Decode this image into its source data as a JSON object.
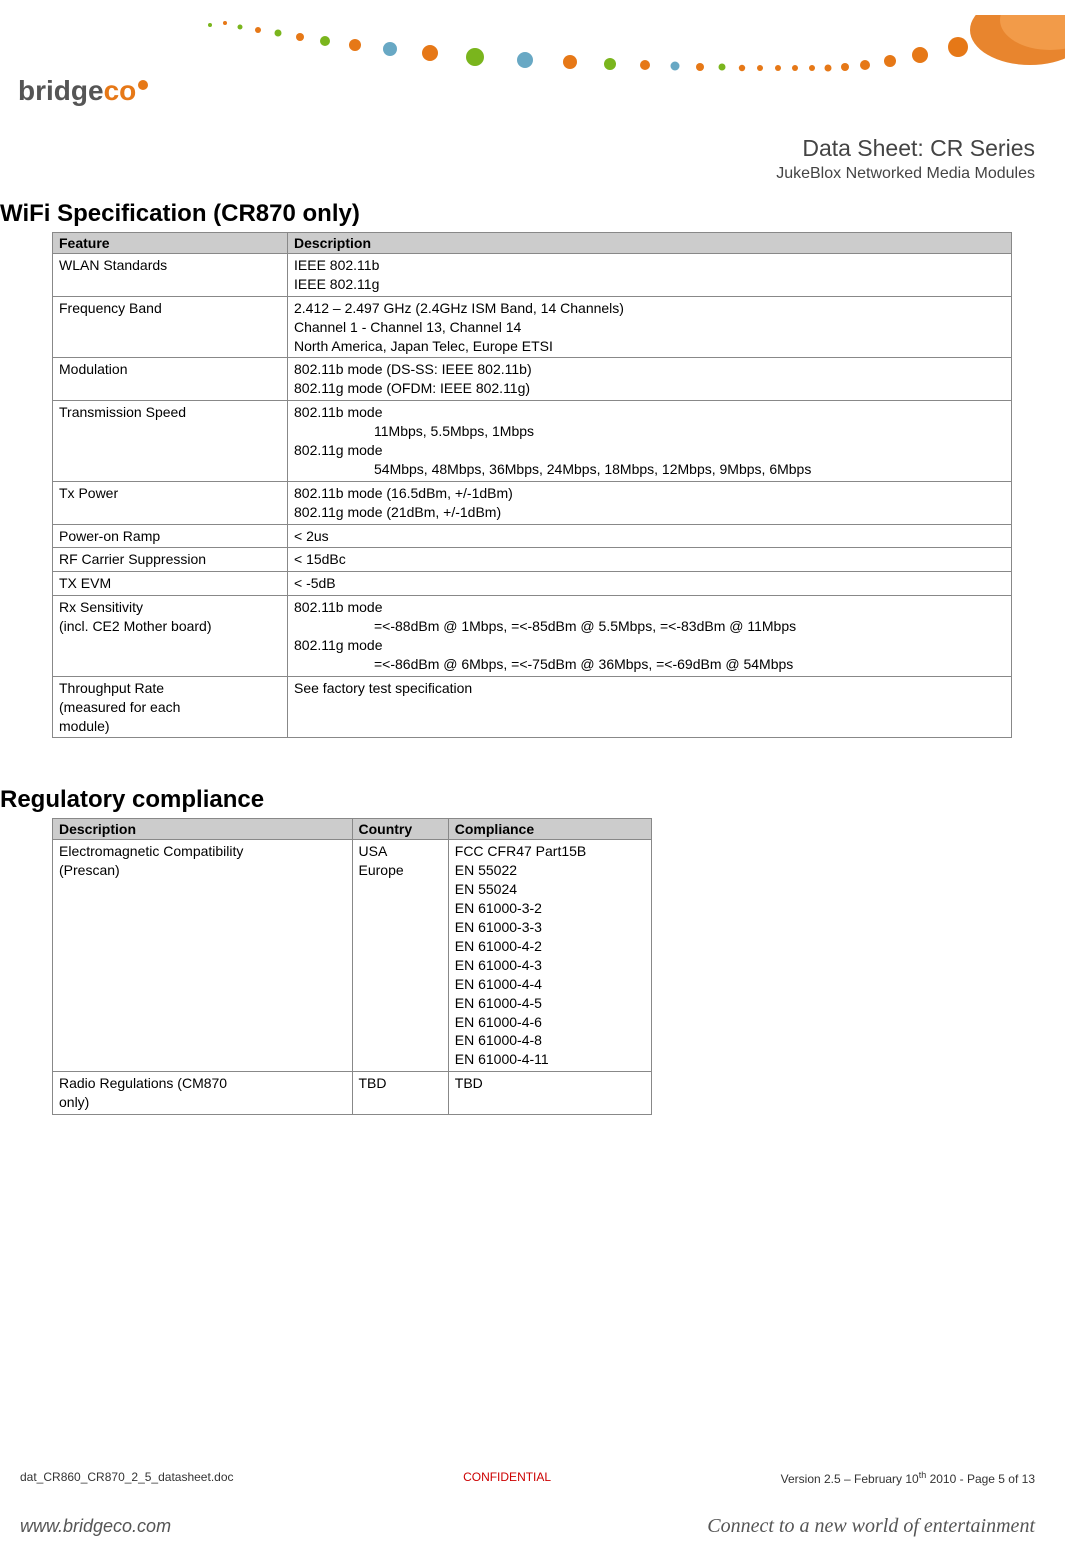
{
  "logo": {
    "part1": "bridge",
    "part2": "co"
  },
  "header": {
    "title": "Data Sheet: CR Series",
    "subtitle": "JukeBlox Networked Media Modules"
  },
  "section1": {
    "heading": "WiFi Specification (CR870 only)",
    "columns": [
      "Feature",
      "Description"
    ],
    "rows": [
      {
        "feature": "WLAN Standards",
        "desc": "IEEE 802.11b\nIEEE 802.11g"
      },
      {
        "feature": "Frequency Band",
        "desc": "2.412 – 2.497 GHz (2.4GHz ISM Band, 14 Channels)\nChannel 1 - Channel 13, Channel 14\nNorth America, Japan Telec, Europe ETSI"
      },
      {
        "feature": "Modulation",
        "desc": "802.11b mode (DS-SS: IEEE 802.11b)\n802.11g mode  (OFDM: IEEE 802.11g)"
      },
      {
        "feature": "Transmission Speed",
        "desc_html": "802.11b mode\n<span class=\"indent\">11Mbps, 5.5Mbps, 1Mbps</span>\n802.11g mode\n<span class=\"indent\">54Mbps, 48Mbps, 36Mbps, 24Mbps, 18Mbps, 12Mbps, 9Mbps, 6Mbps</span>"
      },
      {
        "feature": "Tx Power",
        "desc": "802.11b mode (16.5dBm, +/-1dBm)\n802.11g mode (21dBm, +/-1dBm)"
      },
      {
        "feature": "Power-on Ramp",
        "desc": "< 2us"
      },
      {
        "feature": "RF Carrier Suppression",
        "desc": "< 15dBc"
      },
      {
        "feature": "TX EVM",
        "desc": "< -5dB"
      },
      {
        "feature": "Rx Sensitivity\n(incl. CE2 Mother board)",
        "desc_html": "802.11b mode\n<span class=\"indent\">=&lt;-88dBm @ 1Mbps, =&lt;-85dBm @ 5.5Mbps, =&lt;-83dBm @ 11Mbps</span>\n802.11g mode\n<span class=\"indent\">=&lt;-86dBm @ 6Mbps, =&lt;-75dBm @ 36Mbps, =&lt;-69dBm @ 54Mbps</span>"
      },
      {
        "feature": "Throughput Rate\n(measured for each\nmodule)",
        "desc": "See factory test specification"
      }
    ]
  },
  "section2": {
    "heading": "Regulatory compliance",
    "columns": [
      "Description",
      "Country",
      "Compliance"
    ],
    "rows": [
      {
        "desc": "Electromagnetic Compatibility\n(Prescan)",
        "country": "USA\nEurope",
        "compliance": "FCC CFR47 Part15B\nEN 55022\nEN 55024\nEN 61000-3-2\nEN 61000-3-3\nEN 61000-4-2\nEN 61000-4-3\nEN 61000-4-4\nEN 61000-4-5\nEN 61000-4-6\nEN 61000-4-8\nEN 61000-4-11"
      },
      {
        "desc": "Radio Regulations (CM870\nonly)",
        "country": "TBD",
        "compliance": "TBD"
      }
    ]
  },
  "footer": {
    "doc": "dat_CR860_CR870_2_5_datasheet.doc",
    "confidential": "CONFIDENTIAL",
    "version_prefix": "Version 2.5 – February 10",
    "version_sup": "th",
    "version_suffix": " 2010 - Page 5 of 13",
    "url": "www.bridgeco.com",
    "tagline": "Connect to a new world of entertainment"
  },
  "colors": {
    "header_bg": "#cccccc",
    "border": "#888888",
    "confidential": "#cc0000",
    "orange": "#e67817",
    "green": "#7ab51d",
    "text": "#000000",
    "gray_text": "#555555"
  }
}
